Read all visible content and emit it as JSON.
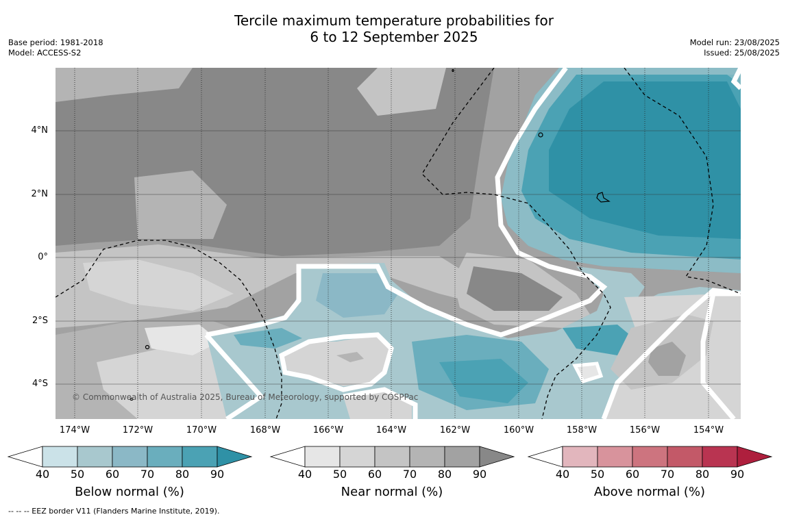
{
  "title": {
    "line1": "Tercile maximum temperature probabilities for",
    "line2": "6 to 12 September 2025"
  },
  "meta": {
    "base_period": "Base period: 1981-2018",
    "model": "Model: ACCESS-S2",
    "model_run": "Model run: 23/08/2025",
    "issued": "Issued: 25/08/2025"
  },
  "map": {
    "lat_labels": [
      "4°N",
      "2°N",
      "0°",
      "2°S",
      "4°S"
    ],
    "lon_labels": [
      "174°W",
      "172°W",
      "170°W",
      "168°W",
      "166°W",
      "164°W",
      "162°W",
      "160°W",
      "158°W",
      "156°W",
      "154°W"
    ],
    "copyright": "© Commonwealth of Australia 2025, Bureau of Meteorology, supported by COSPPac"
  },
  "legends": [
    {
      "title": "Below normal (%)",
      "ticks": [
        "40",
        "50",
        "60",
        "70",
        "80",
        "90"
      ],
      "colors": [
        "#ffffff",
        "#cbe2e8",
        "#a8c8ce",
        "#8bb8c6",
        "#6aaebd",
        "#4ba2b4",
        "#2f91a6"
      ]
    },
    {
      "title": "Near normal (%)",
      "ticks": [
        "40",
        "50",
        "60",
        "70",
        "80",
        "90"
      ],
      "colors": [
        "#ffffff",
        "#e6e6e6",
        "#d5d5d5",
        "#c4c4c4",
        "#b4b4b4",
        "#a2a2a2",
        "#888888"
      ]
    },
    {
      "title": "Above normal (%)",
      "ticks": [
        "40",
        "50",
        "60",
        "70",
        "80",
        "90"
      ],
      "colors": [
        "#ffffff",
        "#e2b6bd",
        "#d8939c",
        "#cd747f",
        "#c35968",
        "#b93451",
        "#ae1f3d"
      ]
    }
  ],
  "footnote": "--  --  -- EEZ border V11 (Flanders Marine Institute, 2019)."
}
